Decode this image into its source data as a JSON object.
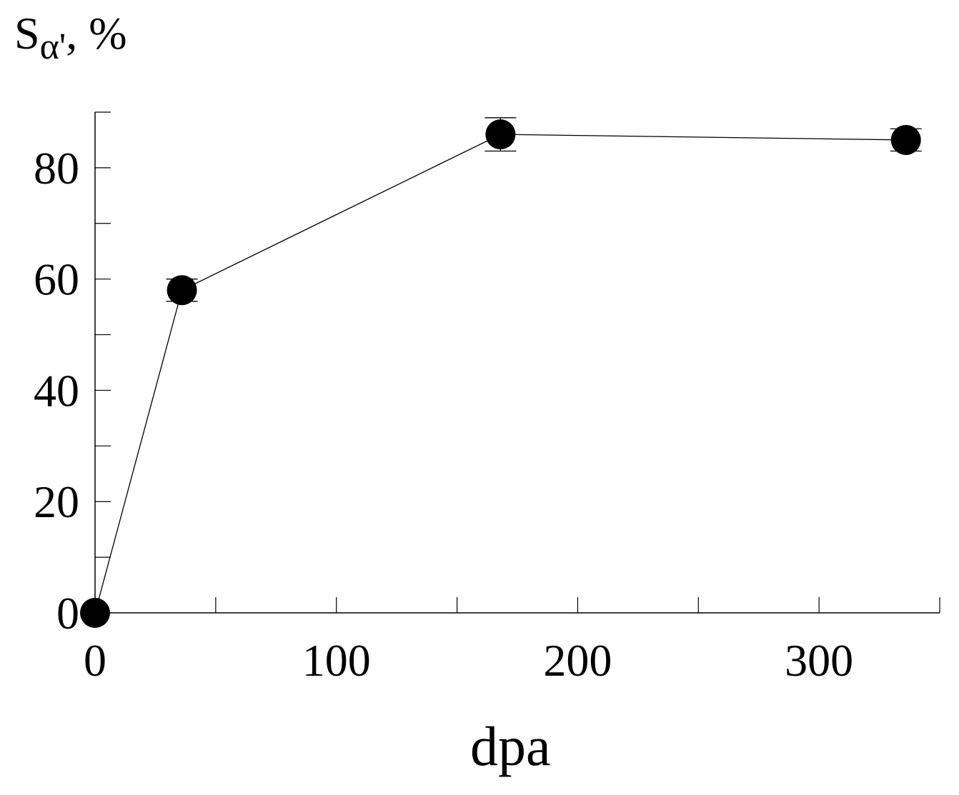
{
  "chart_data": {
    "type": "line",
    "ylabel": {
      "symbol": "S",
      "subscript": "α'",
      "suffix": ", %"
    },
    "xlabel": "dpa",
    "xlim": [
      0,
      350
    ],
    "ylim": [
      0,
      90
    ],
    "x_ticks_major": [
      0,
      100,
      200,
      300
    ],
    "x_ticks_minor": [
      50,
      150,
      250,
      350
    ],
    "y_ticks_major": [
      0,
      20,
      40,
      60,
      80
    ],
    "y_ticks_minor": [
      10,
      30,
      50,
      70,
      90
    ],
    "grid": false,
    "series": [
      {
        "x": [
          0,
          36,
          168,
          336
        ],
        "values": [
          0,
          58,
          86,
          85
        ],
        "errors": [
          0,
          2,
          3,
          2
        ],
        "marker": "filled-circle",
        "color": "#000000"
      }
    ]
  }
}
